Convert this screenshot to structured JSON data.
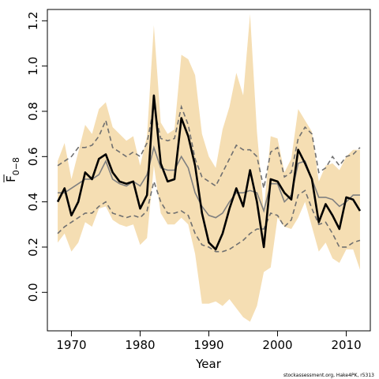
{
  "chart_data": {
    "type": "line",
    "xlabel": "Year",
    "ylabel_main": "F",
    "ylabel_sub": "0−8",
    "credit": "stockassessment.org, Hake4PK, r5313",
    "xlim": [
      1966.5,
      2013.5
    ],
    "ylim": [
      -0.17,
      1.25
    ],
    "x_ticks": [
      1970,
      1980,
      1990,
      2000,
      2010
    ],
    "y_ticks": [
      0.0,
      0.2,
      0.4,
      0.6,
      0.8,
      1.0,
      1.2
    ],
    "y_tick_labels": [
      "0.0",
      "0.2",
      "0.4",
      "0.6",
      "0.8",
      "1.0",
      "1.2"
    ],
    "colors": {
      "band": "#f5deb3",
      "main": "#000000",
      "gray": "#808080",
      "dashed": "#707070"
    },
    "x": [
      1968,
      1969,
      1970,
      1971,
      1972,
      1973,
      1974,
      1975,
      1976,
      1977,
      1978,
      1979,
      1980,
      1981,
      1982,
      1983,
      1984,
      1985,
      1986,
      1987,
      1988,
      1989,
      1990,
      1991,
      1992,
      1993,
      1994,
      1995,
      1996,
      1997,
      1998,
      1999,
      2000,
      2001,
      2002,
      2003,
      2004,
      2005,
      2006,
      2007,
      2008,
      2009,
      2010,
      2011,
      2012
    ],
    "series": [
      {
        "role": "band",
        "low": [
          0.22,
          0.26,
          0.18,
          0.22,
          0.31,
          0.29,
          0.37,
          0.38,
          0.32,
          0.3,
          0.29,
          0.3,
          0.21,
          0.24,
          0.56,
          0.35,
          0.3,
          0.3,
          0.33,
          0.3,
          0.17,
          -0.05,
          -0.05,
          -0.04,
          -0.06,
          -0.03,
          -0.07,
          -0.11,
          -0.13,
          -0.06,
          0.09,
          0.11,
          0.33,
          0.29,
          0.28,
          0.33,
          0.4,
          0.29,
          0.18,
          0.22,
          0.15,
          0.13,
          0.19,
          0.19,
          0.1
        ],
        "high": [
          0.58,
          0.66,
          0.5,
          0.62,
          0.74,
          0.7,
          0.81,
          0.84,
          0.73,
          0.7,
          0.67,
          0.69,
          0.56,
          0.69,
          1.18,
          0.75,
          0.7,
          0.72,
          1.05,
          1.03,
          0.96,
          0.7,
          0.6,
          0.55,
          0.72,
          0.82,
          0.97,
          0.87,
          1.23,
          0.71,
          0.36,
          0.69,
          0.68,
          0.53,
          0.59,
          0.81,
          0.76,
          0.71,
          0.49,
          0.56,
          0.57,
          0.54,
          0.6,
          0.63,
          0.63
        ]
      },
      {
        "role": "estimate",
        "values": [
          0.4,
          0.46,
          0.34,
          0.4,
          0.53,
          0.5,
          0.59,
          0.61,
          0.53,
          0.49,
          0.48,
          0.49,
          0.37,
          0.43,
          0.87,
          0.57,
          0.49,
          0.5,
          0.77,
          0.69,
          0.56,
          0.35,
          0.22,
          0.19,
          0.26,
          0.37,
          0.46,
          0.38,
          0.54,
          0.4,
          0.2,
          0.5,
          0.49,
          0.44,
          0.41,
          0.63,
          0.57,
          0.5,
          0.31,
          0.39,
          0.34,
          0.28,
          0.42,
          0.41,
          0.36
        ]
      },
      {
        "role": "gray",
        "values": [
          0.44,
          0.44,
          0.46,
          0.48,
          0.5,
          0.5,
          0.52,
          0.58,
          0.5,
          0.48,
          0.47,
          0.49,
          0.47,
          0.52,
          0.64,
          0.55,
          0.54,
          0.54,
          0.6,
          0.55,
          0.44,
          0.38,
          0.34,
          0.33,
          0.35,
          0.4,
          0.44,
          0.44,
          0.45,
          0.44,
          0.36,
          0.48,
          0.48,
          0.4,
          0.43,
          0.57,
          0.58,
          0.5,
          0.42,
          0.42,
          0.41,
          0.38,
          0.4,
          0.43,
          0.43
        ]
      },
      {
        "role": "dashed_upper",
        "values": [
          0.56,
          0.58,
          0.6,
          0.64,
          0.64,
          0.65,
          0.69,
          0.76,
          0.64,
          0.62,
          0.6,
          0.62,
          0.6,
          0.66,
          0.82,
          0.68,
          0.67,
          0.68,
          0.82,
          0.74,
          0.59,
          0.51,
          0.49,
          0.47,
          0.53,
          0.59,
          0.65,
          0.63,
          0.63,
          0.6,
          0.46,
          0.62,
          0.64,
          0.51,
          0.53,
          0.68,
          0.73,
          0.7,
          0.53,
          0.55,
          0.6,
          0.56,
          0.6,
          0.61,
          0.64
        ]
      },
      {
        "role": "dashed_lower",
        "values": [
          0.26,
          0.29,
          0.31,
          0.33,
          0.35,
          0.35,
          0.38,
          0.4,
          0.35,
          0.34,
          0.33,
          0.34,
          0.33,
          0.36,
          0.49,
          0.4,
          0.35,
          0.35,
          0.36,
          0.34,
          0.26,
          0.21,
          0.2,
          0.18,
          0.18,
          0.19,
          0.21,
          0.23,
          0.26,
          0.28,
          0.28,
          0.35,
          0.34,
          0.29,
          0.32,
          0.43,
          0.45,
          0.37,
          0.3,
          0.31,
          0.26,
          0.2,
          0.2,
          0.22,
          0.23
        ]
      }
    ]
  }
}
